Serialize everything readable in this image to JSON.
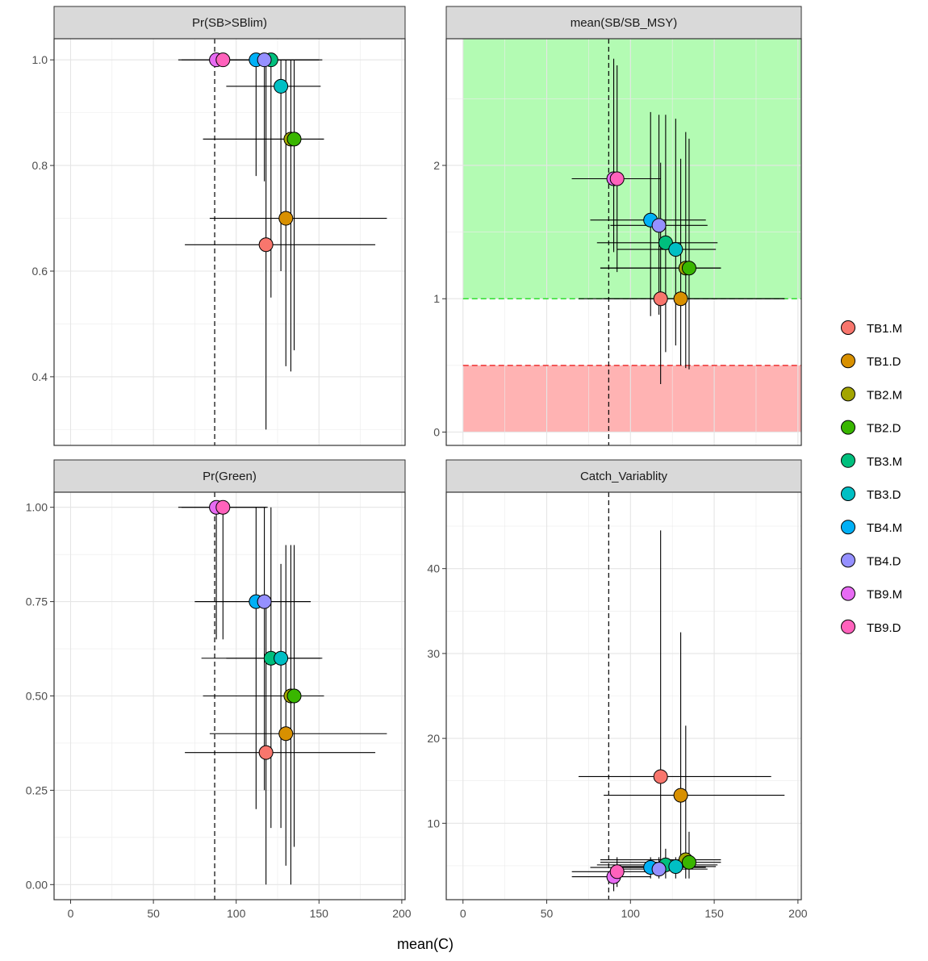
{
  "colors": {
    "TB1.M": "#F8766D",
    "TB1.D": "#D89000",
    "TB2.M": "#A3A500",
    "TB2.D": "#39B600",
    "TB3.M": "#00BF7D",
    "TB3.D": "#00BFC4",
    "TB4.M": "#00B0F6",
    "TB4.D": "#9590FF",
    "TB9.M": "#E76BF3",
    "TB9.D": "#FF62BC",
    "green_zone": "#b3fbb3",
    "red_zone": "#ffb3b3",
    "green_line": "#33dd33",
    "red_line": "#ee3333"
  },
  "chart_data": {
    "type": "scatter",
    "xlabel": "mean(C)",
    "xlim": [
      -10,
      202
    ],
    "xticks": [
      0,
      50,
      100,
      150,
      200
    ],
    "reference_x": 87,
    "legend": [
      "TB1.M",
      "TB1.D",
      "TB2.M",
      "TB2.D",
      "TB3.M",
      "TB3.D",
      "TB4.M",
      "TB4.D",
      "TB9.M",
      "TB9.D"
    ],
    "legend_position": "right",
    "panels": [
      {
        "title": "Pr(SB>SBlim)",
        "ylim": [
          0.27,
          1.04
        ],
        "yticks": [
          0.4,
          0.6,
          0.8,
          1.0
        ],
        "ytick_labels": [
          "0.4",
          "0.6",
          "0.8",
          "1.0"
        ],
        "points": [
          {
            "name": "TB1.M",
            "x": 118,
            "y": 0.65,
            "xerr": [
              69,
              184
            ],
            "yerr": [
              0.3,
              1.0
            ]
          },
          {
            "name": "TB1.D",
            "x": 130,
            "y": 0.7,
            "xerr": [
              84,
              191
            ],
            "yerr": [
              0.42,
              1.0
            ]
          },
          {
            "name": "TB2.M",
            "x": 133,
            "y": 0.85,
            "xerr": [
              80,
              153
            ],
            "yerr": [
              0.41,
              1.0
            ]
          },
          {
            "name": "TB2.D",
            "x": 135,
            "y": 0.85,
            "xerr": [
              80,
              153
            ],
            "yerr": [
              0.45,
              1.0
            ]
          },
          {
            "name": "TB3.M",
            "x": 121,
            "y": 1.0,
            "xerr": [
              94,
              152
            ],
            "yerr": [
              0.55,
              1.0
            ]
          },
          {
            "name": "TB3.D",
            "x": 127,
            "y": 0.95,
            "xerr": [
              94,
              151
            ],
            "yerr": [
              0.6,
              1.0
            ]
          },
          {
            "name": "TB4.M",
            "x": 112,
            "y": 1.0,
            "xerr": [
              95,
              150
            ],
            "yerr": [
              0.78,
              1.0
            ]
          },
          {
            "name": "TB4.D",
            "x": 117,
            "y": 1.0,
            "xerr": [
              95,
              150
            ],
            "yerr": [
              0.77,
              1.0
            ]
          },
          {
            "name": "TB9.M",
            "x": 88,
            "y": 1.0,
            "xerr": [
              65,
              118
            ],
            "yerr": [
              1.0,
              1.0
            ]
          },
          {
            "name": "TB9.D",
            "x": 92,
            "y": 1.0,
            "xerr": [
              67,
              119
            ],
            "yerr": [
              1.0,
              1.0
            ]
          }
        ]
      },
      {
        "title": "mean(SB/SB_MSY)",
        "ylim": [
          -0.1,
          2.95
        ],
        "yticks": [
          0,
          1,
          2
        ],
        "ytick_labels": [
          "0",
          "1",
          "2"
        ],
        "zones": {
          "green": [
            1,
            2.95
          ],
          "red": [
            0,
            0.5
          ],
          "x_start": 0
        },
        "hlines": [
          {
            "y": 1,
            "color": "green"
          },
          {
            "y": 0.5,
            "color": "red"
          }
        ],
        "points": [
          {
            "name": "TB1.M",
            "x": 118,
            "y": 1.0,
            "xerr": [
              69,
              192
            ],
            "yerr": [
              0.36,
              2.02
            ]
          },
          {
            "name": "TB1.D",
            "x": 130,
            "y": 1.0,
            "xerr": [
              84,
              192
            ],
            "yerr": [
              0.5,
              2.05
            ]
          },
          {
            "name": "TB2.M",
            "x": 133,
            "y": 1.23,
            "xerr": [
              82,
              154
            ],
            "yerr": [
              0.48,
              2.25
            ]
          },
          {
            "name": "TB2.D",
            "x": 135,
            "y": 1.23,
            "xerr": [
              82,
              154
            ],
            "yerr": [
              0.47,
              2.2
            ]
          },
          {
            "name": "TB3.M",
            "x": 121,
            "y": 1.42,
            "xerr": [
              80,
              152
            ],
            "yerr": [
              0.6,
              2.38
            ]
          },
          {
            "name": "TB3.D",
            "x": 127,
            "y": 1.37,
            "xerr": [
              92,
              151
            ],
            "yerr": [
              0.65,
              2.35
            ]
          },
          {
            "name": "TB4.M",
            "x": 112,
            "y": 1.59,
            "xerr": [
              76,
              145
            ],
            "yerr": [
              0.87,
              2.4
            ]
          },
          {
            "name": "TB4.D",
            "x": 117,
            "y": 1.55,
            "xerr": [
              88,
              146
            ],
            "yerr": [
              0.88,
              2.38
            ]
          },
          {
            "name": "TB9.M",
            "x": 90,
            "y": 1.9,
            "xerr": [
              65,
              112
            ],
            "yerr": [
              1.35,
              2.8
            ]
          },
          {
            "name": "TB9.D",
            "x": 92,
            "y": 1.9,
            "xerr": [
              65,
              118
            ],
            "yerr": [
              1.2,
              2.75
            ]
          }
        ]
      },
      {
        "title": "Pr(Green)",
        "ylim": [
          -0.04,
          1.04
        ],
        "yticks": [
          0,
          0.25,
          0.5,
          0.75,
          1.0
        ],
        "ytick_labels": [
          "0.00",
          "0.25",
          "0.50",
          "0.75",
          "1.00"
        ],
        "points": [
          {
            "name": "TB1.M",
            "x": 118,
            "y": 0.35,
            "xerr": [
              69,
              184
            ],
            "yerr": [
              0.0,
              0.75
            ]
          },
          {
            "name": "TB1.D",
            "x": 130,
            "y": 0.4,
            "xerr": [
              84,
              191
            ],
            "yerr": [
              0.05,
              0.9
            ]
          },
          {
            "name": "TB2.M",
            "x": 133,
            "y": 0.5,
            "xerr": [
              80,
              153
            ],
            "yerr": [
              0.0,
              0.9
            ]
          },
          {
            "name": "TB2.D",
            "x": 135,
            "y": 0.5,
            "xerr": [
              80,
              153
            ],
            "yerr": [
              0.1,
              0.9
            ]
          },
          {
            "name": "TB3.M",
            "x": 121,
            "y": 0.6,
            "xerr": [
              79,
              152
            ],
            "yerr": [
              0.15,
              1.0
            ]
          },
          {
            "name": "TB3.D",
            "x": 127,
            "y": 0.6,
            "xerr": [
              94,
              151
            ],
            "yerr": [
              0.15,
              0.85
            ]
          },
          {
            "name": "TB4.M",
            "x": 112,
            "y": 0.75,
            "xerr": [
              75,
              145
            ],
            "yerr": [
              0.2,
              1.0
            ]
          },
          {
            "name": "TB4.D",
            "x": 117,
            "y": 0.75,
            "xerr": [
              75,
              145
            ],
            "yerr": [
              0.25,
              1.0
            ]
          },
          {
            "name": "TB9.M",
            "x": 88,
            "y": 1.0,
            "xerr": [
              65,
              118
            ],
            "yerr": [
              0.65,
              1.0
            ]
          },
          {
            "name": "TB9.D",
            "x": 92,
            "y": 1.0,
            "xerr": [
              67,
              119
            ],
            "yerr": [
              0.65,
              1.0
            ]
          }
        ]
      },
      {
        "title": "Catch_Variablity",
        "ylim": [
          1,
          49
        ],
        "yticks": [
          10,
          20,
          30,
          40
        ],
        "ytick_labels": [
          "10",
          "20",
          "30",
          "40"
        ],
        "points": [
          {
            "name": "TB1.M",
            "x": 118,
            "y": 15.5,
            "xerr": [
              69,
              184
            ],
            "yerr": [
              5,
              44.5
            ]
          },
          {
            "name": "TB1.D",
            "x": 130,
            "y": 13.3,
            "xerr": [
              84,
              192
            ],
            "yerr": [
              5,
              32.5
            ]
          },
          {
            "name": "TB2.M",
            "x": 133,
            "y": 5.7,
            "xerr": [
              82,
              154
            ],
            "yerr": [
              3.5,
              21.5
            ]
          },
          {
            "name": "TB2.D",
            "x": 135,
            "y": 5.4,
            "xerr": [
              82,
              154
            ],
            "yerr": [
              3.5,
              9
            ]
          },
          {
            "name": "TB3.M",
            "x": 121,
            "y": 5.1,
            "xerr": [
              80,
              152
            ],
            "yerr": [
              3.5,
              7
            ]
          },
          {
            "name": "TB3.D",
            "x": 127,
            "y": 4.9,
            "xerr": [
              92,
              151
            ],
            "yerr": [
              3.5,
              6
            ]
          },
          {
            "name": "TB4.M",
            "x": 112,
            "y": 4.8,
            "xerr": [
              76,
              145
            ],
            "yerr": [
              3.5,
              6
            ]
          },
          {
            "name": "TB4.D",
            "x": 117,
            "y": 4.6,
            "xerr": [
              88,
              146
            ],
            "yerr": [
              3.5,
              6
            ]
          },
          {
            "name": "TB9.M",
            "x": 90,
            "y": 3.7,
            "xerr": [
              65,
              112
            ],
            "yerr": [
              2,
              5
            ]
          },
          {
            "name": "TB9.D",
            "x": 92,
            "y": 4.3,
            "xerr": [
              65,
              118
            ],
            "yerr": [
              2.5,
              6
            ]
          }
        ]
      }
    ]
  }
}
